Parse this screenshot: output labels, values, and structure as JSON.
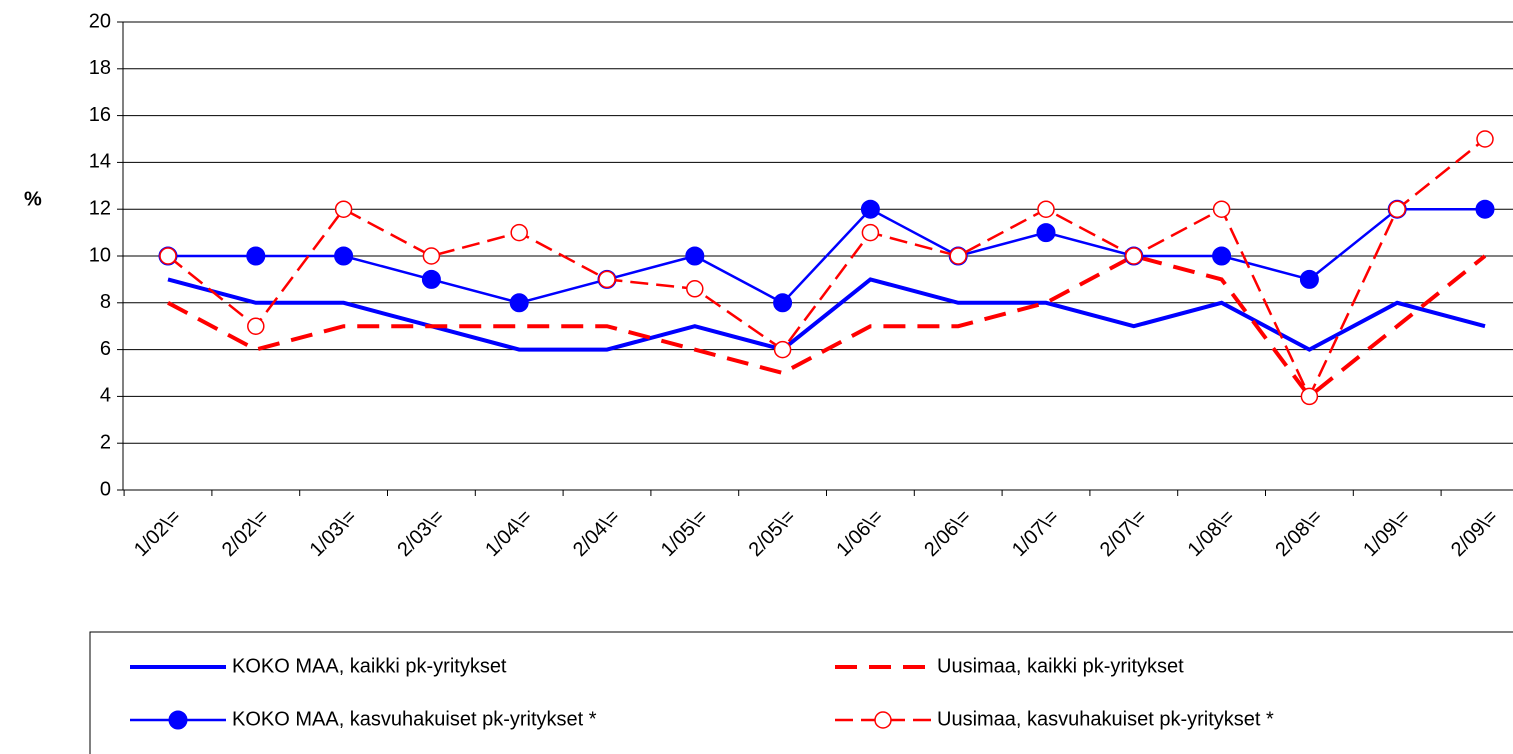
{
  "chart_data": {
    "type": "line",
    "y_label": "%",
    "categories": [
      "1/02\\=",
      "2/02\\=",
      "1/03\\=",
      "2/03\\=",
      "1/04\\=",
      "2/04\\=",
      "1/05\\=",
      "2/05\\=",
      "1/06\\=",
      "2/06\\=",
      "1/07\\=",
      "2/07\\=",
      "1/08\\=",
      "2/08\\=",
      "1/09\\=",
      "2/09\\="
    ],
    "ylim": [
      0,
      20
    ],
    "yticks": [
      0,
      2,
      4,
      6,
      8,
      10,
      12,
      14,
      16,
      18,
      20
    ],
    "grid": true,
    "legend": "bottom",
    "series": [
      {
        "name": "KOKO MAA, kaikki pk-yritykset",
        "color": "#0000ff",
        "line": "thick",
        "dash": "solid",
        "marker": "none",
        "values": [
          9,
          8,
          8,
          7,
          6,
          6,
          7,
          6,
          9,
          8,
          8,
          7,
          8,
          6,
          8,
          7
        ]
      },
      {
        "name": "Uusimaa, kaikki pk-yritykset",
        "color": "#ff0000",
        "line": "thick",
        "dash": "dashed",
        "marker": "none",
        "values": [
          8,
          6,
          7,
          7,
          7,
          7,
          6,
          5,
          7,
          7,
          8,
          10,
          9,
          4,
          7,
          10
        ]
      },
      {
        "name": "KOKO MAA, kasvuhakuiset pk-yritykset *",
        "color": "#0000ff",
        "line": "thin",
        "dash": "solid",
        "marker": "filled",
        "values": [
          10,
          10,
          10,
          9,
          8,
          9,
          10,
          8,
          12,
          10,
          11,
          10,
          10,
          9,
          12,
          12
        ]
      },
      {
        "name": "Uusimaa, kasvuhakuiset pk-yritykset *",
        "color": "#ff0000",
        "line": "thin",
        "dash": "dashed",
        "marker": "open",
        "values": [
          10,
          7,
          12,
          10,
          11,
          9,
          8.6,
          6,
          11,
          10,
          12,
          10,
          12,
          4,
          12,
          15
        ]
      }
    ]
  }
}
